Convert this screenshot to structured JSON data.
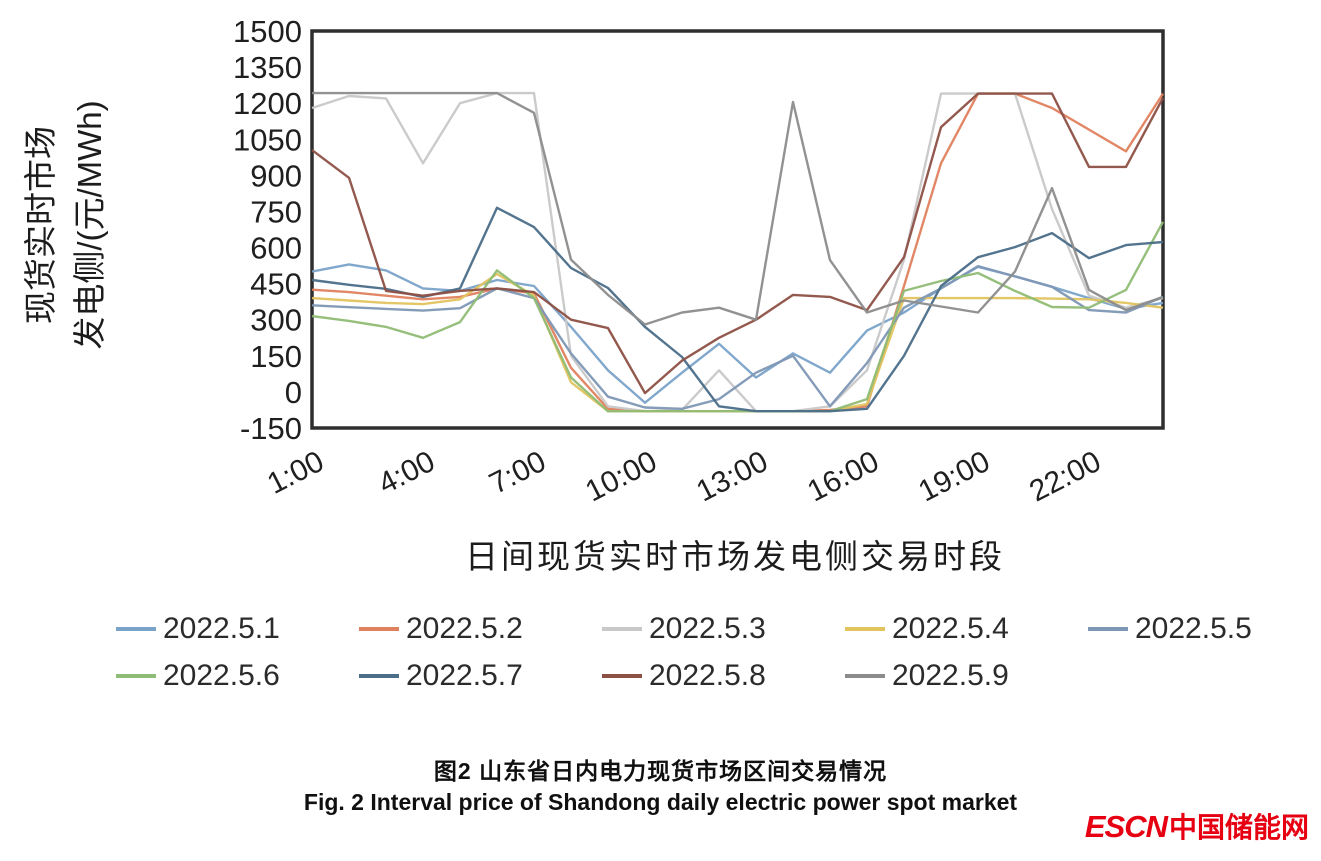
{
  "figure": {
    "caption_cn": "图2  山东省日内电力现货市场区间交易情况",
    "caption_en": "Fig. 2   Interval price of Shandong daily electric power spot market",
    "logo_en": "ESCN",
    "logo_cn": "中国储能网",
    "logo_color": "#e60012"
  },
  "chart_data": {
    "type": "line",
    "title": "",
    "xlabel": "日间现货实时市场发电侧交易时段",
    "ylabel_line1": "现货实时市场",
    "ylabel_line2": "发电侧/(元/MWh)",
    "x_unit": "hour of day",
    "x_hours": [
      1,
      2,
      3,
      4,
      5,
      6,
      7,
      8,
      9,
      10,
      11,
      12,
      13,
      14,
      15,
      16,
      17,
      18,
      19,
      20,
      21,
      22,
      23,
      24
    ],
    "x_tick_hours": [
      1,
      4,
      7,
      10,
      13,
      16,
      19,
      22
    ],
    "x_tick_labels": [
      "1:00",
      "4:00",
      "7:00",
      "10:00",
      "13:00",
      "16:00",
      "19:00",
      "22:00"
    ],
    "y_ticks": [
      1500,
      1350,
      1200,
      1050,
      900,
      750,
      600,
      450,
      300,
      150,
      0,
      -150
    ],
    "ylim": [
      -150,
      1500
    ],
    "grid": false,
    "legend_position": "bottom",
    "price_cap": 1240,
    "price_floor": -80,
    "series": [
      {
        "name": "2022.5.1",
        "color": "#7aa3c9",
        "values": [
          500,
          530,
          505,
          430,
          420,
          465,
          440,
          270,
          90,
          -45,
          80,
          200,
          60,
          160,
          80,
          255,
          330,
          430,
          520,
          480,
          437,
          390,
          345,
          370
        ]
      },
      {
        "name": "2022.5.2",
        "color": "#e0815e",
        "values": [
          425,
          415,
          400,
          385,
          395,
          430,
          410,
          100,
          -70,
          -80,
          -80,
          -80,
          -80,
          -80,
          -75,
          -60,
          440,
          950,
          1240,
          1240,
          1180,
          1090,
          1000,
          1240
        ]
      },
      {
        "name": "2022.5.3",
        "color": "#c8c8c8",
        "values": [
          1180,
          1230,
          1220,
          950,
          1200,
          1242,
          1242,
          150,
          -60,
          -80,
          -75,
          90,
          -80,
          -80,
          -60,
          90,
          550,
          1240,
          1240,
          1240,
          760,
          400,
          350,
          390
        ]
      },
      {
        "name": "2022.5.4",
        "color": "#e2c45f",
        "values": [
          390,
          380,
          370,
          365,
          385,
          490,
          400,
          40,
          -80,
          -80,
          -80,
          -80,
          -80,
          -80,
          -80,
          -50,
          390,
          390,
          390,
          390,
          388,
          385,
          370,
          350
        ]
      },
      {
        "name": "2022.5.5",
        "color": "#7e97b5",
        "values": [
          360,
          352,
          345,
          338,
          348,
          430,
          390,
          160,
          -20,
          -65,
          -70,
          -30,
          80,
          150,
          -60,
          120,
          350,
          430,
          523,
          480,
          437,
          340,
          330,
          395
        ]
      },
      {
        "name": "2022.5.6",
        "color": "#8fbc74",
        "values": [
          315,
          295,
          270,
          225,
          290,
          505,
          390,
          60,
          -80,
          -80,
          -80,
          -80,
          -80,
          -80,
          -80,
          -30,
          420,
          461,
          494,
          420,
          353,
          350,
          424,
          707
        ]
      },
      {
        "name": "2022.5.7",
        "color": "#4a6d88",
        "values": [
          465,
          445,
          428,
          395,
          430,
          765,
          685,
          515,
          432,
          270,
          145,
          -60,
          -80,
          -80,
          -80,
          -70,
          150,
          440,
          560,
          602,
          660,
          556,
          610,
          623
        ]
      },
      {
        "name": "2022.5.8",
        "color": "#8d5045",
        "values": [
          1005,
          890,
          420,
          400,
          420,
          430,
          415,
          300,
          265,
          -5,
          130,
          225,
          300,
          403,
          395,
          340,
          560,
          1100,
          1240,
          1240,
          1240,
          935,
          935,
          1222
        ]
      },
      {
        "name": "2022.5.9",
        "color": "#8c8c8c",
        "values": [
          1242,
          1242,
          1242,
          1242,
          1242,
          1242,
          1160,
          550,
          403,
          280,
          330,
          350,
          300,
          1205,
          548,
          330,
          380,
          355,
          330,
          500,
          847,
          424,
          340,
          395
        ]
      }
    ]
  }
}
